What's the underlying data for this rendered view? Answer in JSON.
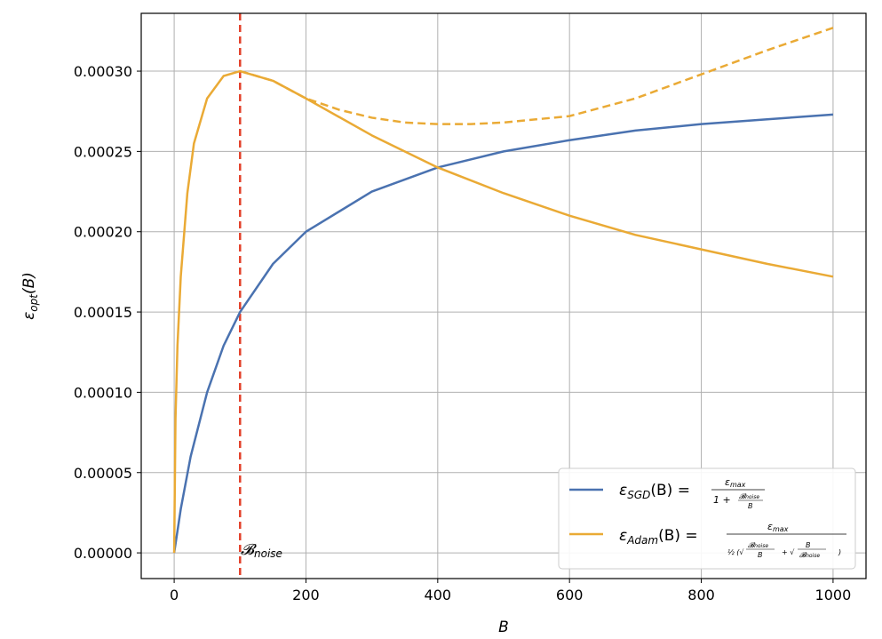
{
  "chart_data": {
    "type": "line",
    "xlabel": "B",
    "ylabel": "ε_opt(B)",
    "xlim": [
      -50,
      1050
    ],
    "ylim": [
      -1.6e-05,
      0.000336
    ],
    "x_ticks": [
      0,
      200,
      400,
      600,
      800,
      1000
    ],
    "x_tick_labels": [
      "0",
      "200",
      "400",
      "600",
      "800",
      "1000"
    ],
    "y_ticks": [
      0,
      5e-05,
      0.0001,
      0.00015,
      0.0002,
      0.00025,
      0.0003
    ],
    "y_tick_labels": [
      "0.00000",
      "0.00005",
      "0.00010",
      "0.00015",
      "0.00020",
      "0.00025",
      "0.00030"
    ],
    "grid": true,
    "legend_position": "bottom-right",
    "params": {
      "eps_max": 0.0003,
      "B_noise": 100
    },
    "series": [
      {
        "name": "ε_SGD(B)",
        "color": "#4a72b0",
        "style": "solid",
        "x": [
          0,
          10,
          25,
          50,
          75,
          100,
          150,
          200,
          300,
          400,
          500,
          600,
          700,
          800,
          900,
          1000
        ],
        "values": [
          0,
          2.73e-05,
          6e-05,
          0.0001,
          0.000129,
          0.00015,
          0.00018,
          0.0002,
          0.000225,
          0.00024,
          0.00025,
          0.000257,
          0.000263,
          0.000267,
          0.00027,
          0.000273
        ]
      },
      {
        "name": "ε_Adam(B)",
        "color": "#eaaa35",
        "style": "solid",
        "x": [
          0,
          2,
          5,
          10,
          20,
          30,
          50,
          75,
          100,
          150,
          200,
          300,
          400,
          500,
          600,
          700,
          800,
          900,
          1000
        ],
        "values": [
          0,
          8.35e-05,
          0.000129,
          0.000172,
          0.000224,
          0.000255,
          0.000283,
          0.000297,
          0.0003,
          0.000294,
          0.000283,
          0.00026,
          0.00024,
          0.000224,
          0.00021,
          0.000198,
          0.000189,
          0.00018,
          0.000172
        ]
      },
      {
        "color": "#eaaa35",
        "style": "dashed",
        "x": [
          100,
          150,
          200,
          250,
          300,
          350,
          400,
          450,
          500,
          600,
          700,
          800,
          900,
          1000
        ],
        "values": [
          0.0003,
          0.000294,
          0.000283,
          0.000276,
          0.000271,
          0.000268,
          0.000267,
          0.000267,
          0.000268,
          0.000272,
          0.000283,
          0.000298,
          0.000313,
          0.000327
        ]
      }
    ],
    "vline": {
      "x": 100,
      "color": "#e3402a",
      "style": "dashed",
      "label": "B_noise"
    },
    "legend": {
      "sgd": {
        "lhs": "ε",
        "lhs_sub": "SGD",
        "arg": "(B) =",
        "num": "ε",
        "num_sub": "max",
        "den_prefix": "1 + ",
        "den_num": "B",
        "den_num_sub": "noise",
        "den_den": "B"
      },
      "adam": {
        "lhs": "ε",
        "lhs_sub": "Adam",
        "arg": "(B) =",
        "num": "ε",
        "num_sub": "max",
        "den": "½(√(B_noise / B) + √(B / B_noise))"
      }
    }
  }
}
